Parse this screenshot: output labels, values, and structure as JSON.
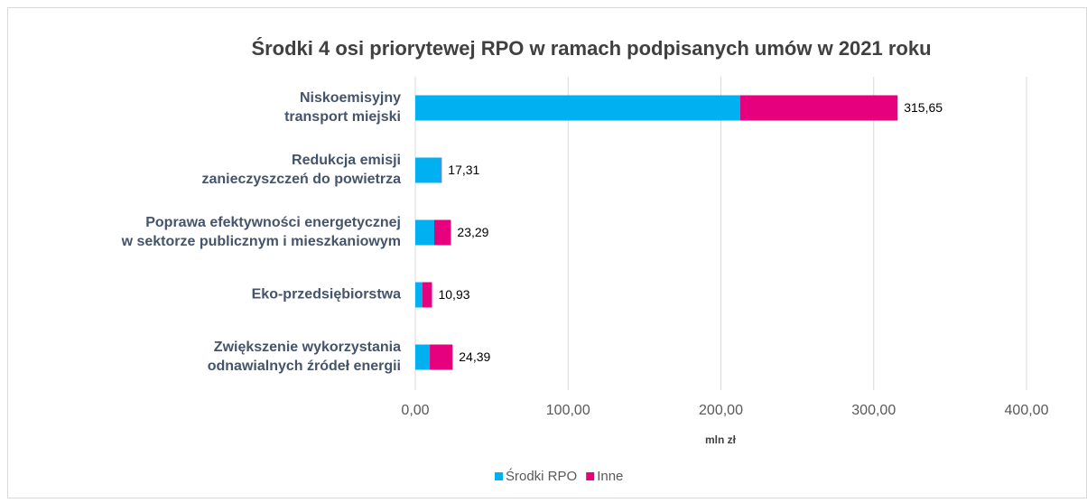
{
  "chart_data": {
    "type": "bar",
    "orientation": "horizontal",
    "stacked": true,
    "title": "Środki 4 osi priorytewej RPO w ramach podpisanych umów w 2021 roku",
    "x_label": "mln zł",
    "categories": [
      [
        "Niskoemisyjny",
        "transport miejski"
      ],
      [
        "Redukcja emisji",
        "zanieczyszczeń do powietrza"
      ],
      [
        "Poprawa efektywności energetycznej",
        "w sektorze publicznym i mieszkaniowym"
      ],
      [
        "Eko-przedsiębiorstwa"
      ],
      [
        "Zwiększenie wykorzystania",
        "odnawialnych źródeł energii"
      ]
    ],
    "series": [
      {
        "name": "Środki RPO",
        "color": "#00b0f0",
        "values": [
          212.7,
          17.0,
          12.4,
          4.7,
          9.5
        ]
      },
      {
        "name": "Inne",
        "color": "#e6007e",
        "values": [
          102.95,
          0.31,
          10.89,
          6.23,
          14.89
        ]
      }
    ],
    "totals": [
      315.65,
      17.31,
      23.29,
      10.93,
      24.39
    ],
    "total_labels": [
      "315,65",
      "17,31",
      "23,29",
      "10,93",
      "24,39"
    ],
    "xlim": [
      0,
      400
    ],
    "xticks": [
      {
        "value": 0,
        "label": "0,00"
      },
      {
        "value": 100,
        "label": "100,00"
      },
      {
        "value": 200,
        "label": "200,00"
      },
      {
        "value": 300,
        "label": "300,00"
      },
      {
        "value": 400,
        "label": "400,00"
      }
    ],
    "grid": true,
    "legend": "bottom"
  }
}
